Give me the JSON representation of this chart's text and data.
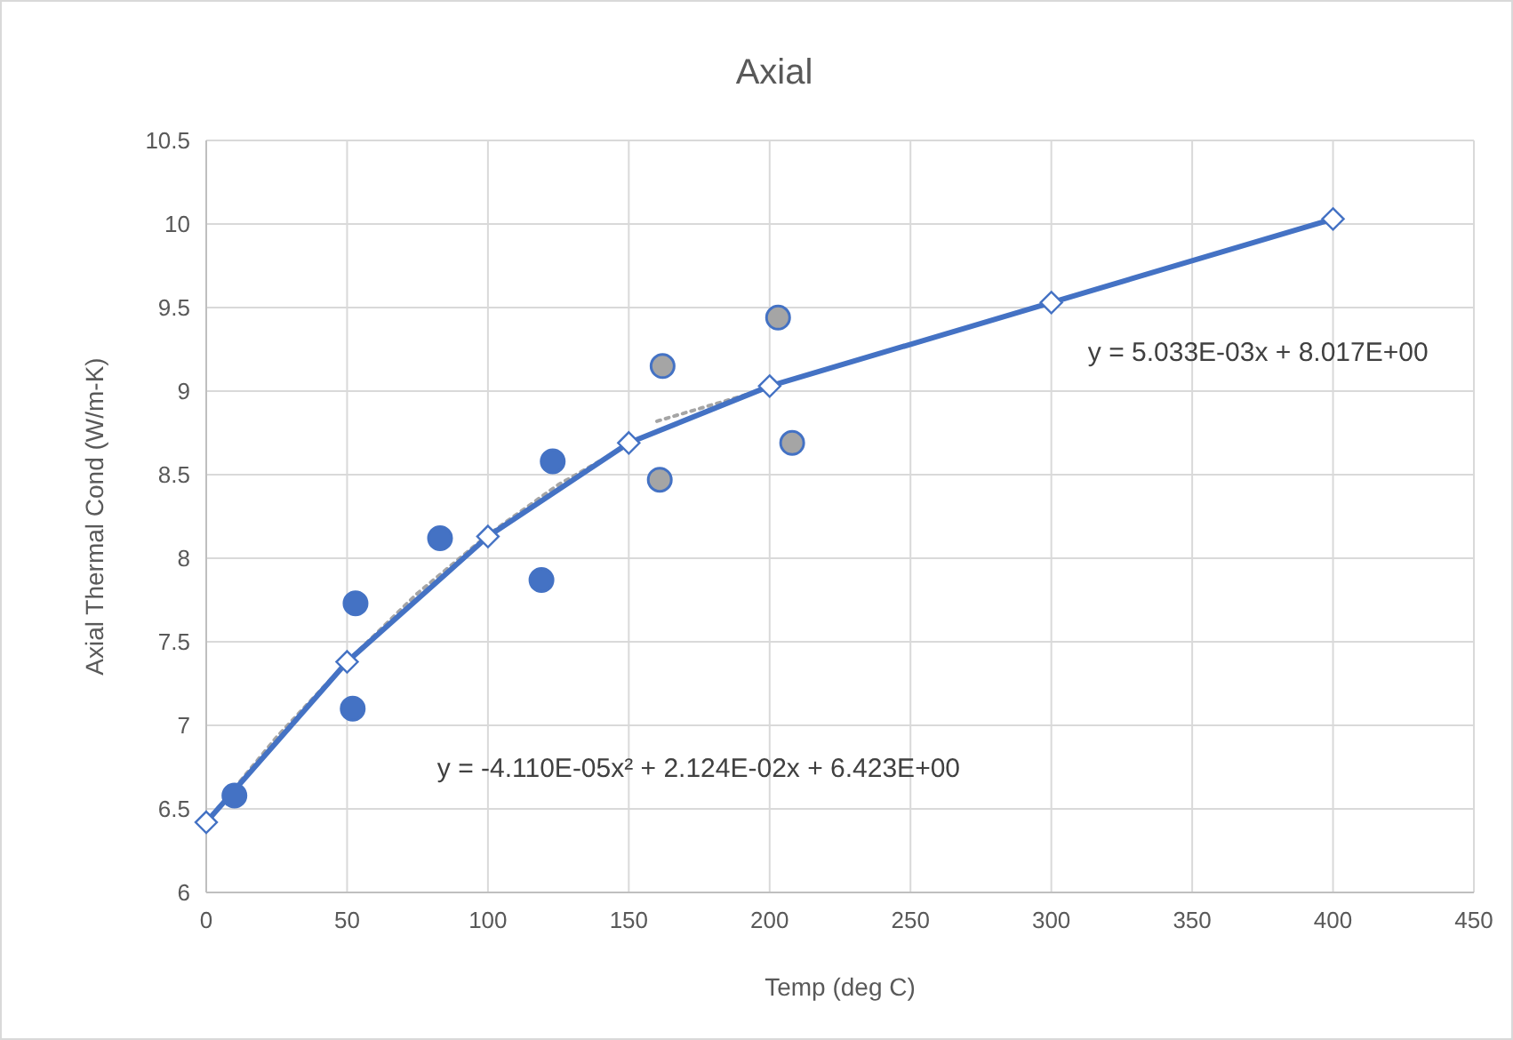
{
  "chart_data": {
    "type": "scatter",
    "title": "Axial",
    "xlabel": "Temp (deg C)",
    "ylabel": "Axial Thermal Cond (W/m-K)",
    "xlim": [
      0,
      450
    ],
    "xticks": [
      0,
      50,
      100,
      150,
      200,
      250,
      300,
      350,
      400,
      450
    ],
    "ylim": [
      6,
      10.5
    ],
    "yticks": [
      6,
      6.5,
      7,
      7.5,
      8,
      8.5,
      9,
      9.5,
      10,
      10.5
    ],
    "grid": true,
    "series": [
      {
        "type": "line",
        "color": "#a5a5a5",
        "line_style": "dotted",
        "marker": "none",
        "x": [
          0,
          25,
          50,
          75,
          100,
          125,
          150
        ],
        "values": [
          6.42,
          6.93,
          7.38,
          7.79,
          8.14,
          8.44,
          8.68
        ]
      },
      {
        "type": "line",
        "color": "#a5a5a5",
        "line_style": "dotted",
        "marker": "none",
        "x": [
          160,
          200
        ],
        "values": [
          8.82,
          9.02
        ]
      },
      {
        "type": "line",
        "color": "#4472c4",
        "line_style": "solid",
        "marker": "diamond",
        "x": [
          0,
          50,
          100,
          150,
          200,
          300,
          400
        ],
        "values": [
          6.42,
          7.38,
          8.13,
          8.69,
          9.03,
          9.53,
          10.03
        ]
      },
      {
        "color": "#4472c4",
        "marker": "circle",
        "x": [
          10,
          53,
          52,
          83,
          119,
          123
        ],
        "values": [
          6.58,
          7.73,
          7.1,
          8.12,
          7.87,
          8.58
        ]
      },
      {
        "color": "#a5a5a5",
        "marker": "circle",
        "x": [
          162,
          161,
          203,
          208
        ],
        "values": [
          9.15,
          8.47,
          9.44,
          8.69
        ]
      }
    ],
    "annotations": [
      "y = -4.110E-05x² + 2.124E-02x + 6.423E+00",
      "y = 5.033E-03x + 8.017E+00"
    ]
  }
}
